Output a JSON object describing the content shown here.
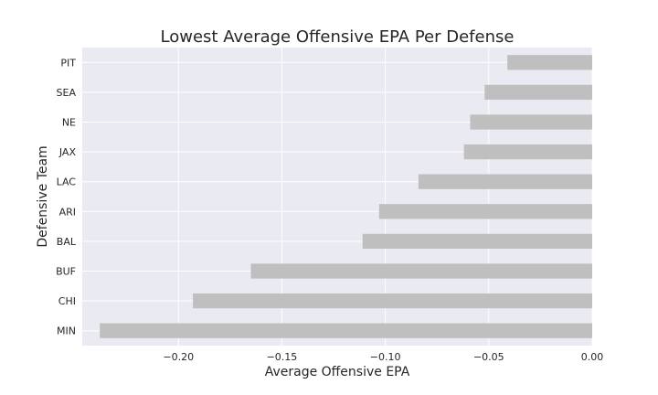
{
  "chart_data": {
    "type": "bar",
    "orientation": "horizontal",
    "title": "Lowest Average Offensive EPA Per Defense",
    "xlabel": "Average Offensive EPA",
    "ylabel": "Defensive Team",
    "categories": [
      "MIN",
      "CHI",
      "BUF",
      "BAL",
      "ARI",
      "LAC",
      "JAX",
      "NE",
      "SEA",
      "PIT"
    ],
    "values": [
      -0.238,
      -0.193,
      -0.165,
      -0.111,
      -0.103,
      -0.084,
      -0.062,
      -0.059,
      -0.052,
      -0.041
    ],
    "xlim": [
      -0.2465,
      0.0
    ],
    "xticks": [
      -0.2,
      -0.15,
      -0.1,
      -0.05,
      0.0
    ],
    "xtick_labels": [
      "−0.20",
      "−0.15",
      "−0.10",
      "−0.05",
      "0.00"
    ],
    "grid": true,
    "legend": "none",
    "colors": {
      "bar": "#bfbfbf",
      "plot_bg": "#eaeaf2",
      "grid": "#ffffff"
    }
  }
}
